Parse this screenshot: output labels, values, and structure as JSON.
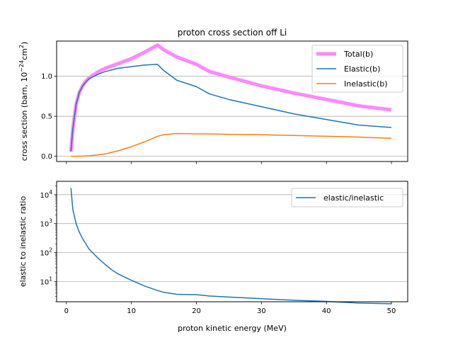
{
  "chart_data": [
    {
      "type": "line",
      "title": "proton cross section off Li",
      "xlabel": "",
      "ylabel_main": "cross section (barn, 10",
      "ylabel_exp": "−24",
      "ylabel_unit": "cm",
      "ylabel_unit_exp": "2",
      "ylabel_close": ")",
      "xlim": [
        -1.5,
        52.5
      ],
      "ylim": [
        -0.065,
        1.44
      ],
      "xticks": [
        0,
        10,
        20,
        30,
        40,
        50
      ],
      "yticks": [
        0.0,
        0.5,
        1.0
      ],
      "ytick_labels": [
        "0.0",
        "0.5",
        "1.0"
      ],
      "grid": "y",
      "legend": "top-right",
      "series": [
        {
          "name": "Total(b)",
          "color": "#ff88ff",
          "x": [
            0.7,
            1.0,
            1.5,
            2.0,
            2.5,
            3.0,
            3.5,
            4.0,
            5.0,
            6.0,
            7.0,
            8.0,
            10.0,
            12.0,
            14.0,
            15.0,
            17.0,
            20.0,
            22.0,
            25.0,
            30.0,
            35.0,
            40.0,
            45.0,
            50.0
          ],
          "values": [
            0.06,
            0.35,
            0.65,
            0.8,
            0.88,
            0.94,
            0.98,
            1.01,
            1.06,
            1.1,
            1.13,
            1.16,
            1.22,
            1.3,
            1.39,
            1.33,
            1.24,
            1.15,
            1.06,
            0.99,
            0.88,
            0.79,
            0.71,
            0.63,
            0.58
          ]
        },
        {
          "name": "Elastic(b)",
          "color": "#1f77b4",
          "x": [
            0.7,
            1.0,
            1.5,
            2.0,
            2.5,
            3.0,
            3.5,
            4.0,
            5.0,
            6.0,
            7.0,
            8.0,
            10.0,
            12.0,
            14.0,
            15.0,
            17.0,
            20.0,
            22.0,
            25.0,
            30.0,
            35.0,
            40.0,
            45.0,
            50.0
          ],
          "values": [
            0.06,
            0.35,
            0.65,
            0.8,
            0.88,
            0.93,
            0.97,
            0.99,
            1.03,
            1.06,
            1.08,
            1.1,
            1.12,
            1.14,
            1.15,
            1.07,
            0.95,
            0.87,
            0.78,
            0.71,
            0.62,
            0.53,
            0.46,
            0.39,
            0.36
          ]
        },
        {
          "name": "Inelastic(b)",
          "color": "#ff7f0e",
          "x": [
            0.7,
            1.0,
            1.5,
            2.0,
            2.5,
            3.0,
            3.5,
            4.0,
            5.0,
            6.0,
            7.0,
            8.0,
            10.0,
            12.0,
            14.0,
            15.0,
            17.0,
            20.0,
            22.0,
            25.0,
            30.0,
            35.0,
            40.0,
            45.0,
            50.0
          ],
          "values": [
            0.0,
            0.0,
            0.0,
            0.002,
            0.003,
            0.005,
            0.007,
            0.01,
            0.02,
            0.03,
            0.05,
            0.07,
            0.12,
            0.18,
            0.25,
            0.27,
            0.285,
            0.28,
            0.28,
            0.275,
            0.27,
            0.26,
            0.25,
            0.24,
            0.225
          ]
        }
      ]
    },
    {
      "type": "line",
      "title": "",
      "xlabel": "proton kinetic energy (MeV)",
      "ylabel": "elastic to inelastic ratio",
      "yscale": "log",
      "xlim": [
        -1.5,
        52.5
      ],
      "ylim_log10": [
        0.3,
        4.46
      ],
      "xticks": [
        0,
        10,
        20,
        30,
        40,
        50
      ],
      "xtick_labels": [
        "0",
        "10",
        "20",
        "30",
        "40",
        "50"
      ],
      "ytick_exponents": [
        1,
        2,
        3,
        4
      ],
      "ytick_base": "10",
      "grid": "y",
      "legend": "top-right",
      "series": [
        {
          "name": "elastic/inelastic",
          "color": "#1f77b4",
          "x": [
            0.7,
            1.0,
            1.5,
            2.0,
            2.5,
            3.0,
            3.5,
            4.0,
            5.0,
            6.0,
            7.0,
            8.0,
            10.0,
            12.0,
            14.0,
            15.0,
            17.0,
            20.0,
            22.0,
            25.0,
            30.0,
            35.0,
            40.0,
            45.0,
            50.0
          ],
          "values": [
            17000,
            3000,
            1000,
            500,
            300,
            200,
            130,
            100,
            60,
            38,
            25,
            18,
            11,
            7,
            4.9,
            4.2,
            3.6,
            3.5,
            3.15,
            2.9,
            2.55,
            2.25,
            2.05,
            1.8,
            1.7
          ]
        }
      ]
    }
  ]
}
